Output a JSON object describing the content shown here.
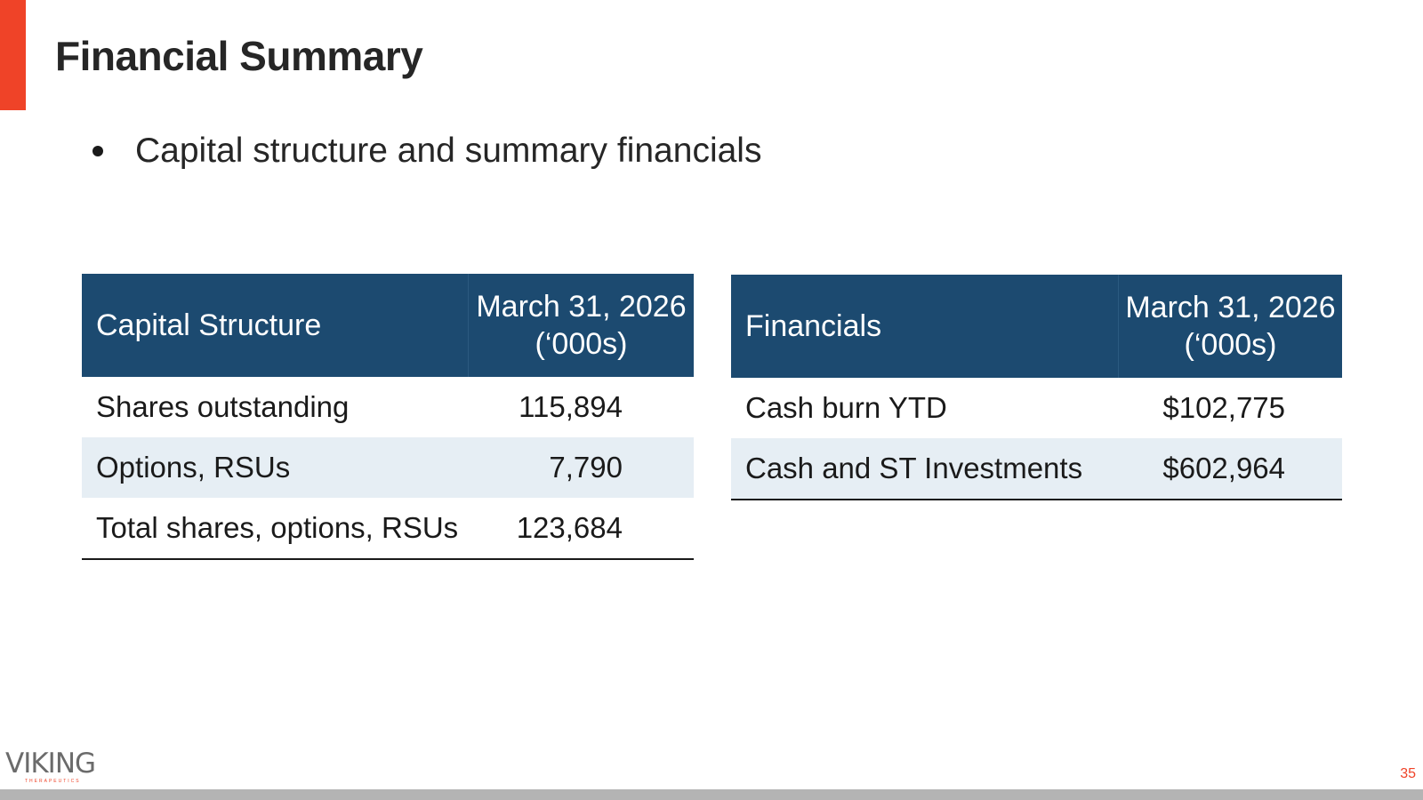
{
  "title": "Financial Summary",
  "bullet": "Capital structure and summary financials",
  "capital_table": {
    "header_label": "Capital Structure",
    "header_date_line1": "March 31, 2026",
    "header_date_line2": "(‘000s)",
    "rows": [
      {
        "label": "Shares outstanding",
        "value": "115,894"
      },
      {
        "label": "Options, RSUs",
        "value": "7,790"
      },
      {
        "label": "Total shares, options, RSUs",
        "value": "123,684"
      }
    ]
  },
  "financials_table": {
    "header_label": "Financials",
    "header_date_line1": "March 31, 2026",
    "header_date_line2": "(‘000s)",
    "rows": [
      {
        "label": "Cash burn YTD",
        "value": "$102,775"
      },
      {
        "label": "Cash and ST Investments",
        "value": "$602,964"
      }
    ]
  },
  "logo": {
    "wordmark": "VIKING",
    "subtitle": "THERAPEUTICS"
  },
  "page_number": "35",
  "colors": {
    "accent": "#ef4328",
    "table_header": "#1c4a70",
    "row_alt": "#e6eef4",
    "footer_bar": "#b4b4b4",
    "logo_accent": "#ef4328"
  }
}
